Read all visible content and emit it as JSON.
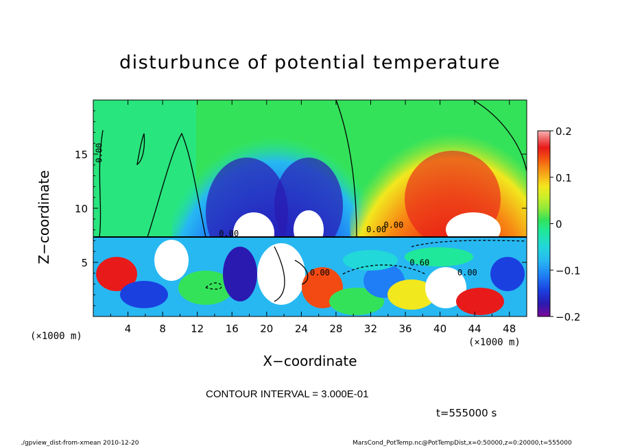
{
  "chart_data": {
    "type": "heatmap",
    "title": "disturbunce of potential temperature",
    "xlabel": "X−coordinate",
    "ylabel": "Z−coordinate",
    "x_unit": "(×1000 m)",
    "x_unit_right": "(×1000 m)",
    "x_ticks": [
      "4",
      "8",
      "12",
      "16",
      "20",
      "24",
      "28",
      "32",
      "36",
      "40",
      "44",
      "48"
    ],
    "y_ticks": [
      "5",
      "10",
      "15"
    ],
    "xlim": [
      0,
      50
    ],
    "ylim": [
      0,
      20
    ],
    "colorbar": {
      "range": [
        -0.2,
        0.2
      ],
      "tick_labels": [
        "0.2",
        "0.1",
        "0",
        "−0.1",
        "−0.2"
      ],
      "colors": [
        "#7a0a9a",
        "#2a1ab0",
        "#1a40e0",
        "#1f7ef5",
        "#27b8f2",
        "#22d8d8",
        "#20e89a",
        "#34e25a",
        "#8ee83a",
        "#c8ee2a",
        "#f2e81e",
        "#f7b81a",
        "#f78a14",
        "#f24a12",
        "#e81a1a",
        "#f06a6a",
        "#f8b4b4",
        "#ffffff"
      ]
    },
    "contour_labels": [
      "0.00",
      "0.00",
      "0.00",
      "0.00",
      "0.60",
      "0.00",
      "0.00"
    ],
    "contour_interval": "CONTOUR INTERVAL = 3.000E-01",
    "time": "t=555000  s"
  },
  "footer": {
    "left": "./gpview_dist-from-xmean   2010-12-20",
    "right": "MarsCond_PotTemp.nc@PotTempDist,x=0:50000,z=0:20000,t=555000"
  }
}
